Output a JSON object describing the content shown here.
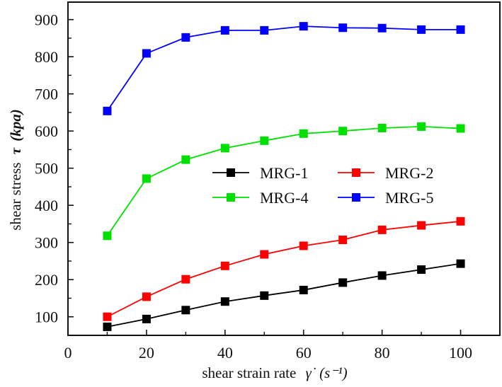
{
  "chart_data": {
    "type": "line",
    "title": "",
    "xlabel": "shear strain rate",
    "xlabel_symbol": "γ̇",
    "xlabel_unit": "(s⁻¹)",
    "ylabel": "shear stress",
    "ylabel_symbol": "τ",
    "ylabel_unit": "(kpa)",
    "xlim": [
      0,
      110
    ],
    "ylim": [
      50,
      947
    ],
    "x_ticks": [
      0,
      20,
      40,
      60,
      80,
      100
    ],
    "x_minor_ticks": [
      10,
      30,
      50,
      70,
      90
    ],
    "y_ticks": [
      100,
      200,
      300,
      400,
      500,
      600,
      700,
      800,
      900
    ],
    "y_minor_ticks": [
      150,
      250,
      350,
      450,
      550,
      650,
      750,
      850
    ],
    "grid": false,
    "legend_position": "center-right",
    "marker": "square",
    "x": [
      10,
      20,
      30,
      40,
      50,
      60,
      70,
      80,
      90,
      100
    ],
    "series": [
      {
        "name": "MRG-1",
        "color": "#000000",
        "values": [
          73,
          94,
          118,
          141,
          157,
          172,
          192,
          211,
          227,
          243
        ]
      },
      {
        "name": "MRG-2",
        "color": "#ff0000",
        "values": [
          100,
          154,
          201,
          237,
          268,
          291,
          307,
          334,
          346,
          357
        ]
      },
      {
        "name": "MRG-4",
        "color": "#00e000",
        "values": [
          318,
          472,
          523,
          554,
          574,
          593,
          600,
          608,
          612,
          607
        ]
      },
      {
        "name": "MRG-5",
        "color": "#0000ff",
        "values": [
          654,
          809,
          852,
          871,
          871,
          882,
          878,
          877,
          873,
          873
        ]
      }
    ]
  }
}
